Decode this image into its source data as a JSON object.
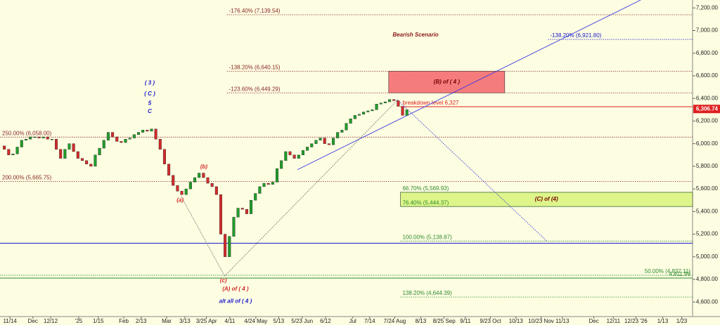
{
  "chart_data": {
    "type": "candlestick",
    "values": [
      5980,
      5950,
      5900,
      5910,
      5970,
      6030,
      6040,
      6060,
      6060,
      6050,
      6060,
      6040,
      6040,
      5950,
      5870,
      5950,
      6000,
      5930,
      5870,
      5850,
      5820,
      5800,
      5900,
      5960,
      6030,
      6100,
      6060,
      6020,
      6010,
      6040,
      6050,
      6080,
      6100,
      6120,
      6110,
      6130,
      6040,
      5950,
      5820,
      5720,
      5630,
      5580,
      5550,
      5600,
      5660,
      5700,
      5740,
      5700,
      5650,
      5620,
      5550,
      5200,
      5000,
      5180,
      5350,
      5430,
      5420,
      5380,
      5500,
      5560,
      5620,
      5650,
      5640,
      5660,
      5780,
      5850,
      5930,
      5900,
      5870,
      5900,
      5940,
      5970,
      6000,
      6030,
      6050,
      6000,
      5990,
      6050,
      6100,
      6120,
      6180,
      6220,
      6250,
      6260,
      6280,
      6290,
      6300,
      6350,
      6360,
      6370,
      6390,
      6380,
      6330,
      6250,
      6300
    ],
    "up_color": "#1f9e2a",
    "down_color": "#d42a2a",
    "xlim": [
      0,
      160
    ],
    "xticks": [
      {
        "value": 2.3,
        "label": "11/14"
      },
      {
        "value": 7.6,
        "label": "Dec"
      },
      {
        "value": 11.7,
        "label": "12/12"
      },
      {
        "value": 18.2,
        "label": "'25"
      },
      {
        "value": 22.7,
        "label": "1/15"
      },
      {
        "value": 28.6,
        "label": "Feb"
      },
      {
        "value": 32.6,
        "label": "2/13"
      },
      {
        "value": 38.5,
        "label": "Mar"
      },
      {
        "value": 42.7,
        "label": "3/13"
      },
      {
        "value": 47.7,
        "label": "3/25 Apr"
      },
      {
        "value": 53.1,
        "label": "4/11"
      },
      {
        "value": 59.1,
        "label": "4/24 May"
      },
      {
        "value": 64.4,
        "label": "5/13"
      },
      {
        "value": 69.8,
        "label": "5/23 Jun"
      },
      {
        "value": 75.2,
        "label": "6/12"
      },
      {
        "value": 81.5,
        "label": "Jul"
      },
      {
        "value": 85.4,
        "label": "7/14"
      },
      {
        "value": 91.2,
        "label": "7/24 Aug"
      },
      {
        "value": 97.2,
        "label": "8/13"
      },
      {
        "value": 102.6,
        "label": "8/25 Sep"
      },
      {
        "value": 107.5,
        "label": "9/11"
      },
      {
        "value": 113.3,
        "label": "9/23 Oct"
      },
      {
        "value": 119.2,
        "label": "10/13"
      },
      {
        "value": 125,
        "label": "10/23 Nov"
      },
      {
        "value": 129.9,
        "label": "11/13"
      },
      {
        "value": 137.2,
        "label": "Dec"
      },
      {
        "value": 141.7,
        "label": "12/11"
      },
      {
        "value": 146.9,
        "label": "12/23 '26"
      },
      {
        "value": 153.1,
        "label": "1/13"
      },
      {
        "value": 157.5,
        "label": "1/23"
      }
    ],
    "ylim": [
      4490,
      7270
    ],
    "yticks": [
      {
        "value": 4600,
        "label": "4,600.00"
      },
      {
        "value": 4800,
        "label": "4,800.00"
      },
      {
        "value": 5000,
        "label": "5,000.00"
      },
      {
        "value": 5200,
        "label": "5,200.00"
      },
      {
        "value": 5400,
        "label": "5,400.00"
      },
      {
        "value": 5600,
        "label": "5,600.00"
      },
      {
        "value": 5800,
        "label": "5,800.00"
      },
      {
        "value": 6000,
        "label": "6,000.00"
      },
      {
        "value": 6200,
        "label": "6,200.00"
      },
      {
        "value": 6400,
        "label": "6,400.00"
      },
      {
        "value": 6600,
        "label": "6,600.00"
      },
      {
        "value": 6800,
        "label": "6,800.00"
      },
      {
        "value": 7000,
        "label": "7,000.00"
      },
      {
        "value": 7200,
        "label": "7,200.00"
      }
    ],
    "last_price": {
      "value": 6306.74,
      "label": "6,306.74"
    },
    "last_price_color": "#e02020",
    "levels": [
      {
        "label": "-176.40% (7,139.54)",
        "value": 7139.54,
        "x": [
          52.4,
          160
        ],
        "color": "#8b2a2a",
        "dashed": true
      },
      {
        "label": "-138.20% (6,921.80)",
        "value": 6921.8,
        "x": [
          126.6,
          160
        ],
        "color": "#1a1acc",
        "dashed": true
      },
      {
        "label": "-138.20% (6,640.15)",
        "value": 6640.15,
        "x": [
          52.4,
          160
        ],
        "color": "#8b2a2a",
        "dashed": true
      },
      {
        "label": "-123.60% (6,449.29)",
        "value": 6449.29,
        "x": [
          52.4,
          160
        ],
        "color": "#8b2a2a",
        "dashed": true
      },
      {
        "label": "breakdown level 6,327",
        "value": 6327,
        "x": [
          92.5,
          160
        ],
        "color": "#e02020",
        "dashed": false
      },
      {
        "label": "250.00% (6,058.00)",
        "value": 6058,
        "x": [
          0,
          160
        ],
        "color": "#8b2a2a",
        "dashed": true
      },
      {
        "label": "200.00% (5,665.75)",
        "value": 5665.75,
        "x": [
          0,
          160
        ],
        "color": "#8b2a2a",
        "dashed": true
      },
      {
        "label": "66.70% (5,569.93)",
        "value": 5569.93,
        "x": [
          92.5,
          160
        ],
        "color": "#2e8b2e",
        "dashed": true
      },
      {
        "label": "76.40% (5,444.37)",
        "value": 5444.37,
        "x": [
          92.5,
          160
        ],
        "color": "#2e8b2e",
        "dashed": true
      },
      {
        "label": "100.00% (5,138.87)",
        "value": 5138.87,
        "x": [
          92.5,
          160
        ],
        "color": "#2e8b2e",
        "dashed": true
      },
      {
        "value": 5120,
        "x": [
          0,
          160
        ],
        "color": "#1a1acc",
        "dashed": false
      },
      {
        "label": "50.00% (4,837.11)",
        "value": 4837.11,
        "x": [
          0,
          160
        ],
        "color": "#2e8b2e",
        "dashed": true,
        "anchor": "end"
      },
      {
        "label": "4,811.99",
        "value": 4811.99,
        "x": [
          0,
          160
        ],
        "color": "#2e8b2e",
        "dashed": false,
        "anchor": "end"
      },
      {
        "label": "138.20% (4,644.39)",
        "value": 4644.39,
        "x": [
          92.5,
          160
        ],
        "color": "#2e8b2e",
        "dashed": true
      }
    ],
    "boxes": [
      {
        "label": "(B) of ( 4 )",
        "x": [
          89.8,
          116.6
        ],
        "y": [
          6449.29,
          6640.15
        ],
        "color": "#f47c7c",
        "text_color": "#7a0000"
      },
      {
        "label": "(C) of (4)",
        "x": [
          92.5,
          160
        ],
        "y": [
          5444.37,
          5569.93
        ],
        "color": "#ddf58a",
        "text_color": "#7a0000"
      }
    ],
    "trend_lines": [
      {
        "x": [
          68.7,
          148
        ],
        "y": [
          5770,
          7270
        ],
        "color": "#3a3ae0",
        "dashed": false
      },
      {
        "x": [
          91.7,
          126.3
        ],
        "y": [
          6390,
          5140
        ],
        "color": "#3a3ae0",
        "dashed": true
      },
      {
        "x": [
          41.9,
          51.9
        ],
        "y": [
          5530,
          4830
        ],
        "color": "#666666",
        "dashed": true
      },
      {
        "x": [
          51.9,
          91.7
        ],
        "y": [
          4830,
          6380
        ],
        "color": "#666666",
        "dashed": true
      }
    ],
    "annotations": [
      {
        "text": "Bearish Scenario",
        "x": 96,
        "y": 6960,
        "color": "#8b1a1a",
        "size": 11
      },
      {
        "text": "( 3 )",
        "x": 34.6,
        "y": 6535,
        "color": "#1a1acc",
        "size": 11
      },
      {
        "text": "( C )",
        "x": 34.6,
        "y": 6440,
        "color": "#1a1acc",
        "size": 11
      },
      {
        "text": "5",
        "x": 34.6,
        "y": 6355,
        "color": "#1a1acc",
        "size": 8
      },
      {
        "text": "C",
        "x": 34.6,
        "y": 6285,
        "color": "#1a1acc",
        "size": 8
      },
      {
        "text": "(b)",
        "x": 47.1,
        "y": 5795,
        "color": "#d42a2a",
        "size": 9
      },
      {
        "text": "(a)",
        "x": 41.6,
        "y": 5500,
        "color": "#d42a2a",
        "size": 9
      },
      {
        "text": "(c)",
        "x": 51.6,
        "y": 4790,
        "color": "#d42a2a",
        "size": 9
      },
      {
        "text": "(A) of ( 4 )",
        "x": 54.4,
        "y": 4715,
        "color": "#d42a2a",
        "size": 10
      },
      {
        "text": "alt all of ( 4 )",
        "x": 54.4,
        "y": 4605,
        "color": "#1a1acc",
        "size": 10
      }
    ]
  }
}
